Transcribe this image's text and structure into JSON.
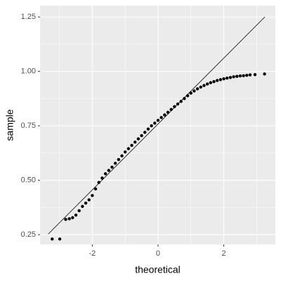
{
  "chart_data": {
    "type": "scatter",
    "x_label": "theoretical",
    "y_label": "sample",
    "xlim": [
      -3.59,
      3.57
    ],
    "ylim": [
      0.205,
      1.302
    ],
    "xticks": [
      -2,
      0,
      2
    ],
    "yticks": [
      0.25,
      0.5,
      0.75,
      1.0,
      1.25
    ],
    "grid": true,
    "color": "#000000",
    "reference_line": {
      "x": [
        -3.34,
        3.25
      ],
      "y": [
        0.253,
        1.25
      ],
      "color": "#000000"
    },
    "series": [
      {
        "name": "sample",
        "x": [
          -3.22,
          -2.99,
          -2.81,
          -2.7,
          -2.6,
          -2.5,
          -2.4,
          -2.3,
          -2.2,
          -2.1,
          -2.0,
          -1.9,
          -1.8,
          -1.7,
          -1.6,
          -1.5,
          -1.4,
          -1.3,
          -1.2,
          -1.1,
          -1.0,
          -0.9,
          -0.8,
          -0.7,
          -0.6,
          -0.5,
          -0.4,
          -0.3,
          -0.2,
          -0.1,
          0.0,
          0.1,
          0.2,
          0.3,
          0.4,
          0.5,
          0.6,
          0.7,
          0.8,
          0.9,
          1.0,
          1.1,
          1.2,
          1.3,
          1.4,
          1.5,
          1.6,
          1.7,
          1.8,
          1.9,
          2.0,
          2.1,
          2.2,
          2.3,
          2.4,
          2.5,
          2.6,
          2.7,
          2.8,
          2.95,
          3.24
        ],
        "values": [
          0.23,
          0.23,
          0.32,
          0.323,
          0.328,
          0.34,
          0.36,
          0.38,
          0.395,
          0.41,
          0.43,
          0.46,
          0.49,
          0.51,
          0.53,
          0.545,
          0.56,
          0.578,
          0.595,
          0.612,
          0.63,
          0.645,
          0.66,
          0.675,
          0.69,
          0.705,
          0.72,
          0.735,
          0.75,
          0.762,
          0.775,
          0.788,
          0.8,
          0.812,
          0.825,
          0.838,
          0.85,
          0.862,
          0.875,
          0.888,
          0.9,
          0.91,
          0.92,
          0.928,
          0.935,
          0.942,
          0.948,
          0.953,
          0.958,
          0.962,
          0.966,
          0.969,
          0.972,
          0.975,
          0.977,
          0.979,
          0.98,
          0.982,
          0.984,
          0.985,
          0.988
        ]
      }
    ]
  }
}
